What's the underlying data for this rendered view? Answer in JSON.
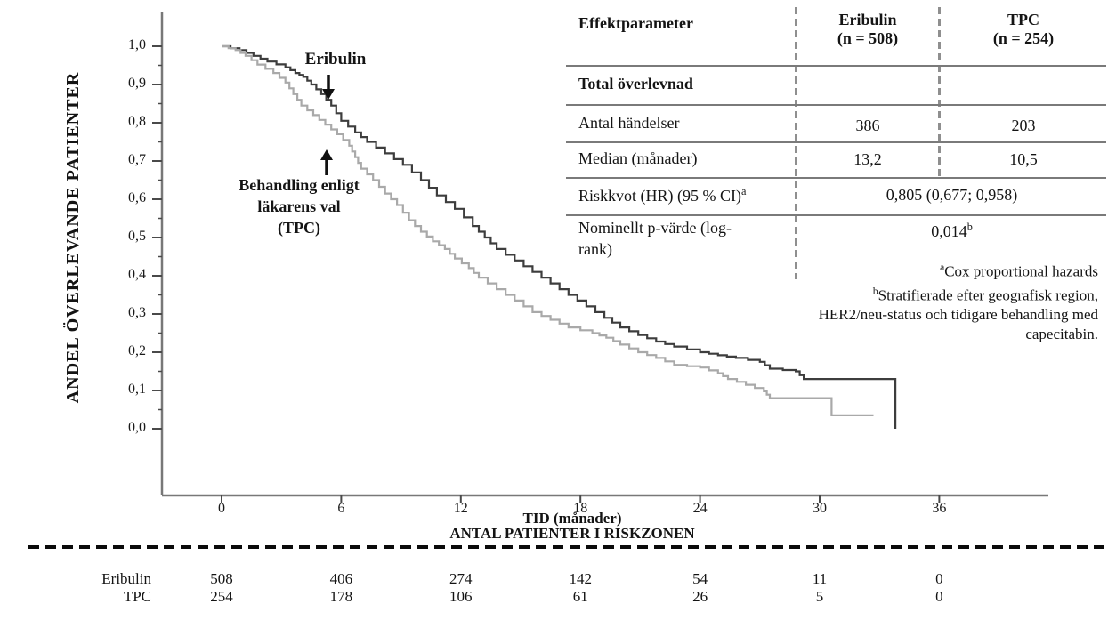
{
  "plot": {
    "y_title": "ANDEL ÖVERLEVANDE PATIENTER",
    "y_tick_labels": [
      "1,0",
      "0,9",
      "0,8",
      "0,7",
      "0,6",
      "0,5",
      "0,4",
      "0,3",
      "0,2",
      "0,1",
      "0,0"
    ],
    "x_title": "TID (månader)",
    "x_tick_labels": [
      "0",
      "6",
      "12",
      "18",
      "24",
      "30",
      "36"
    ],
    "annotations": {
      "eribulin": "Eribulin",
      "tpc_lines": [
        "Behandling enligt",
        "läkarens val",
        "(TPC)"
      ]
    }
  },
  "chart_data": {
    "type": "line",
    "subtype": "kaplan-meier-step",
    "title": "",
    "xlabel": "TID (månader)",
    "ylabel": "ANDEL ÖVERLEVANDE PATIENTER",
    "xlim": [
      0,
      42
    ],
    "ylim": [
      0,
      1.0
    ],
    "x_ticks": [
      0,
      6,
      12,
      18,
      24,
      30,
      36
    ],
    "y_ticks": [
      1.0,
      0.9,
      0.8,
      0.7,
      0.6,
      0.5,
      0.4,
      0.3,
      0.2,
      0.1,
      0.0
    ],
    "grid": false,
    "legend_position": "annotations-on-plot",
    "series": [
      {
        "name": "Eribulin",
        "color": "#3d3d3d",
        "points": [
          [
            0,
            1.0
          ],
          [
            0.9,
            0.99
          ],
          [
            1.6,
            0.975
          ],
          [
            2.3,
            0.96
          ],
          [
            3.2,
            0.945
          ],
          [
            3.7,
            0.93
          ],
          [
            4.1,
            0.92
          ],
          [
            4.5,
            0.9
          ],
          [
            5.0,
            0.875
          ],
          [
            5.5,
            0.845
          ],
          [
            6.0,
            0.805
          ],
          [
            6.7,
            0.775
          ],
          [
            7.3,
            0.75
          ],
          [
            8.2,
            0.72
          ],
          [
            9.1,
            0.69
          ],
          [
            10.0,
            0.65
          ],
          [
            10.8,
            0.61
          ],
          [
            11.7,
            0.575
          ],
          [
            12.6,
            0.53
          ],
          [
            13.2,
            0.5
          ],
          [
            13.8,
            0.47
          ],
          [
            14.7,
            0.44
          ],
          [
            15.6,
            0.41
          ],
          [
            16.5,
            0.38
          ],
          [
            17.4,
            0.35
          ],
          [
            18.3,
            0.32
          ],
          [
            19.2,
            0.29
          ],
          [
            20.0,
            0.265
          ],
          [
            20.9,
            0.245
          ],
          [
            21.8,
            0.228
          ],
          [
            22.7,
            0.215
          ],
          [
            24.0,
            0.2
          ],
          [
            24.9,
            0.192
          ],
          [
            25.8,
            0.185
          ],
          [
            27.0,
            0.175
          ],
          [
            27.5,
            0.157
          ],
          [
            28.8,
            0.15
          ],
          [
            29.2,
            0.13
          ],
          [
            33.8,
            0.13
          ],
          [
            33.8,
            0.0
          ]
        ]
      },
      {
        "name": "Behandling enligt läkarens val (TPC)",
        "color": "#a9a9a9",
        "points": [
          [
            0,
            1.0
          ],
          [
            0.7,
            0.99
          ],
          [
            1.2,
            0.975
          ],
          [
            1.8,
            0.952
          ],
          [
            2.6,
            0.93
          ],
          [
            3.2,
            0.905
          ],
          [
            3.6,
            0.875
          ],
          [
            4.0,
            0.845
          ],
          [
            4.6,
            0.82
          ],
          [
            5.2,
            0.795
          ],
          [
            5.8,
            0.77
          ],
          [
            6.4,
            0.74
          ],
          [
            6.7,
            0.71
          ],
          [
            7.0,
            0.68
          ],
          [
            7.6,
            0.65
          ],
          [
            8.2,
            0.615
          ],
          [
            8.8,
            0.585
          ],
          [
            9.4,
            0.545
          ],
          [
            10.0,
            0.515
          ],
          [
            10.6,
            0.49
          ],
          [
            11.2,
            0.47
          ],
          [
            11.7,
            0.445
          ],
          [
            12.4,
            0.42
          ],
          [
            12.9,
            0.395
          ],
          [
            13.8,
            0.365
          ],
          [
            14.7,
            0.335
          ],
          [
            15.6,
            0.305
          ],
          [
            16.5,
            0.285
          ],
          [
            17.4,
            0.265
          ],
          [
            18.6,
            0.25
          ],
          [
            19.3,
            0.238
          ],
          [
            20.0,
            0.22
          ],
          [
            20.9,
            0.2
          ],
          [
            21.8,
            0.185
          ],
          [
            22.7,
            0.167
          ],
          [
            24.0,
            0.16
          ],
          [
            24.9,
            0.145
          ],
          [
            25.4,
            0.13
          ],
          [
            26.3,
            0.115
          ],
          [
            27.2,
            0.098
          ],
          [
            27.5,
            0.08
          ],
          [
            30.6,
            0.08
          ],
          [
            30.6,
            0.035
          ],
          [
            32.7,
            0.035
          ]
        ]
      }
    ],
    "medians": {
      "Eribulin": 13.2,
      "TPC": 10.5
    }
  },
  "results_table": {
    "header": {
      "param": "Effektparameter",
      "eribulin_line1": "Eribulin",
      "eribulin_line2": "(n = 508)",
      "tpc_line1": "TPC",
      "tpc_line2": "(n = 254)"
    },
    "section": "Total överlevnad",
    "rows": {
      "events": {
        "label": "Antal händelser",
        "eribulin": "386",
        "tpc": "203"
      },
      "median": {
        "label": "Median (månader)",
        "eribulin": "13,2",
        "tpc": "10,5"
      },
      "hr": {
        "label": "Riskkvot (HR) (95 % CI)",
        "label_sup": "a",
        "value": "0,805 (0,677; 0,958)"
      },
      "pvalue": {
        "label_line1": "Nominellt p-värde (log-",
        "label_line2": "rank)",
        "value": "0,014",
        "value_sup": "b"
      }
    }
  },
  "footnotes": {
    "a_sup": "a",
    "a_text": "Cox proportional hazards",
    "b_sup": "b",
    "b_lines": [
      "Stratifierade efter geografisk region,",
      "HER2/neu-status och tidigare behandling med",
      "capecitabin."
    ]
  },
  "risk_section": {
    "heading": "ANTAL PATIENTER I RISKZONEN",
    "rows": [
      {
        "label": "Eribulin",
        "counts": [
          "508",
          "406",
          "274",
          "142",
          "54",
          "11",
          "0"
        ]
      },
      {
        "label": "TPC",
        "counts": [
          "254",
          "178",
          "106",
          "61",
          "26",
          "5",
          "0"
        ]
      }
    ]
  },
  "colors": {
    "eribulin_curve": "#3d3d3d",
    "tpc_curve": "#a9a9a9",
    "axis": "#787878",
    "tick": "#4a4a4a",
    "table_rule": "#7a7a7a",
    "dashed_divider": "#8f8f8f",
    "arrow": "#111111"
  }
}
